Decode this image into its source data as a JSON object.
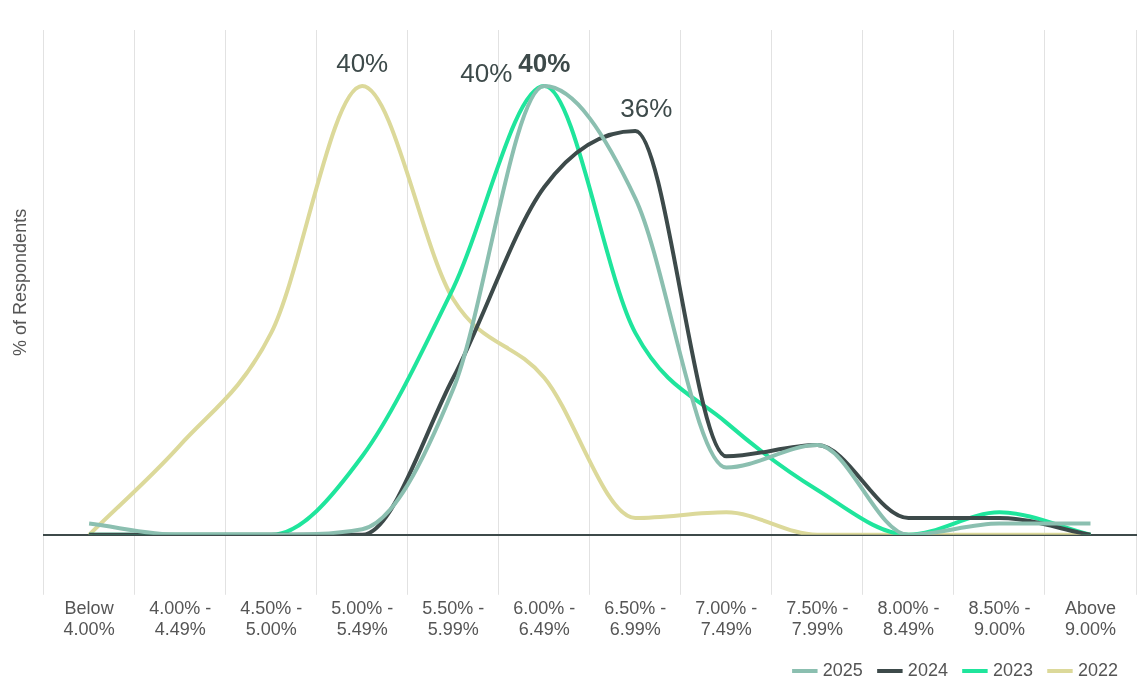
{
  "chart_data": {
    "type": "line",
    "ylabel": "% of Respondents",
    "categories": [
      "Below\n4.00%",
      "4.00% -\n4.49%",
      "4.50% -\n5.00%",
      "5.00% -\n5.49%",
      "5.50% -\n5.99%",
      "6.00% -\n6.49%",
      "6.50% -\n6.99%",
      "7.00% -\n7.49%",
      "7.50% -\n7.99%",
      "8.00% -\n8.49%",
      "8.50% -\n9.00%",
      "Above\n9.00%"
    ],
    "series": [
      {
        "name": "2025",
        "color": "#8bbfb0",
        "values": [
          1,
          0,
          0,
          0.5,
          13,
          40,
          30,
          6,
          8,
          0,
          1,
          1
        ],
        "value_labels": [
          null,
          null,
          null,
          null,
          null,
          "40%",
          null,
          null,
          null,
          null,
          null,
          null
        ]
      },
      {
        "name": "2024",
        "color": "#3d4a4a",
        "values": [
          0,
          0,
          0,
          0,
          14,
          31,
          36,
          7,
          8,
          1.5,
          1.5,
          0
        ],
        "value_labels": [
          null,
          null,
          null,
          null,
          null,
          null,
          "36%",
          null,
          null,
          null,
          null,
          null
        ]
      },
      {
        "name": "2023",
        "color": "#1fe59c",
        "values": [
          0,
          0,
          0,
          7,
          22,
          40,
          18,
          10,
          4,
          0,
          2,
          0
        ],
        "value_labels": [
          null,
          null,
          null,
          null,
          null,
          "40%",
          null,
          null,
          null,
          null,
          null,
          null
        ]
      },
      {
        "name": "2022",
        "color": "#dcd99a",
        "values": [
          0,
          8,
          18,
          40,
          21,
          14,
          1.5,
          2,
          0,
          0,
          0,
          0
        ],
        "value_labels": [
          null,
          null,
          null,
          "40%",
          null,
          null,
          null,
          null,
          null,
          null,
          null,
          null
        ]
      }
    ],
    "ylim": [
      0,
      45
    ],
    "grid": "x",
    "legend": "bottom right",
    "tick_labels": "x",
    "marker": "none",
    "line_style": "solid"
  }
}
